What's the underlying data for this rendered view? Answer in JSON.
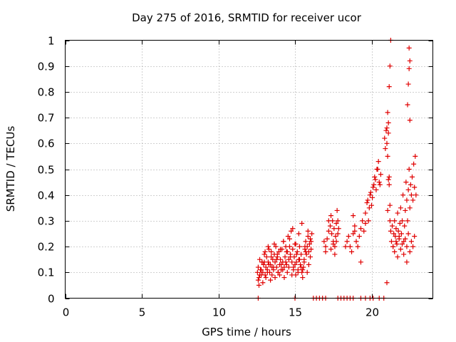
{
  "chart_data": {
    "type": "scatter",
    "title": "Day 275 of 2016, SRMTID for receiver ucor",
    "xlabel": "GPS time / hours",
    "ylabel": "SRMTID / TECUs",
    "xlim": [
      0,
      24
    ],
    "ylim": [
      0,
      1
    ],
    "x_ticks": [
      0,
      5,
      10,
      15,
      20
    ],
    "x_tick_labels": [
      "0",
      "5",
      "10",
      "15",
      "20"
    ],
    "y_ticks": [
      0,
      0.1,
      0.2,
      0.3,
      0.4,
      0.5,
      0.6,
      0.7,
      0.8,
      0.9,
      1
    ],
    "y_tick_labels": [
      "0",
      "0.1",
      "0.2",
      "0.3",
      "0.4",
      "0.5",
      "0.6",
      "0.7",
      "0.8",
      "0.9",
      "1"
    ],
    "grid": true,
    "marker": "plus",
    "color": "#e00000",
    "series": [
      {
        "x": [
          12.55,
          12.6,
          12.65,
          12.7,
          12.75,
          12.8,
          12.85,
          12.9,
          12.95,
          13.0,
          13.05,
          13.1,
          13.15,
          13.2,
          13.25,
          13.3,
          13.35,
          13.4,
          13.45,
          13.5,
          13.55,
          13.6,
          13.65,
          13.7,
          13.75,
          13.8,
          13.85,
          13.9,
          13.95,
          14.0,
          14.05,
          14.1,
          14.15,
          14.2,
          14.25,
          14.3,
          14.35,
          14.4,
          14.45,
          14.5,
          14.55,
          14.6,
          14.65,
          14.7,
          14.75,
          14.8,
          14.85,
          14.9,
          14.95,
          15.0,
          15.05,
          15.1,
          15.15,
          15.2,
          15.25,
          15.3,
          15.35,
          15.4,
          15.45,
          15.5,
          15.55,
          15.6,
          15.65,
          15.7,
          15.75,
          15.8,
          15.85,
          15.9,
          15.95,
          16.0,
          16.05,
          16.1,
          12.6,
          12.7,
          12.8,
          12.9,
          13.0,
          13.1,
          13.2,
          13.3,
          13.4,
          13.5,
          13.6,
          13.7,
          13.8,
          13.9,
          14.0,
          14.1,
          14.2,
          14.3,
          14.4,
          14.5,
          14.6,
          14.7,
          14.8,
          14.9,
          15.0,
          15.1,
          15.2,
          15.3,
          15.4,
          15.5,
          15.6,
          15.7,
          15.8,
          15.9,
          16.0,
          12.65,
          12.85,
          13.05,
          13.25,
          13.45,
          13.65,
          13.85,
          14.05,
          14.25,
          14.45,
          14.65,
          14.85,
          15.05,
          15.25,
          15.45,
          15.65,
          15.85,
          16.05,
          16.9,
          17.0,
          17.1,
          17.2,
          17.3,
          17.35,
          17.4,
          17.45,
          17.5,
          17.55,
          17.6,
          17.65,
          17.7,
          17.75,
          17.8,
          17.85,
          17.0,
          17.2,
          17.35,
          17.5,
          17.6,
          17.7,
          17.8,
          18.3,
          18.4,
          18.5,
          18.6,
          18.7,
          18.8,
          18.9,
          19.0,
          19.1,
          19.2,
          19.3,
          19.4,
          19.5,
          19.6,
          19.7,
          19.8,
          19.9,
          20.0,
          20.1,
          20.2,
          20.3,
          20.4,
          20.5,
          20.6,
          18.8,
          18.9,
          19.3,
          19.6,
          19.75,
          19.85,
          19.95,
          20.05,
          20.15,
          20.25,
          20.35,
          20.45,
          20.55,
          20.85,
          20.9,
          20.95,
          21.0,
          21.05,
          21.1,
          21.15,
          21.2,
          21.25,
          21.3,
          21.35,
          21.4,
          21.45,
          21.5,
          21.55,
          21.6,
          21.65,
          21.7,
          21.75,
          21.8,
          21.85,
          21.9,
          21.95,
          22.0,
          22.05,
          22.1,
          22.15,
          22.2,
          22.25,
          22.3,
          22.35,
          22.4,
          22.45,
          22.5,
          22.55,
          22.6,
          22.65,
          22.7,
          22.75,
          22.8,
          22.85,
          22.9,
          21.0,
          21.05,
          21.1,
          21.15,
          21.2,
          21.25,
          21.4,
          21.5,
          21.6,
          21.7,
          21.8,
          21.9,
          22.0,
          22.1,
          22.2,
          22.3,
          22.4,
          22.5,
          22.6,
          22.7,
          22.8,
          21.1,
          21.15,
          21.2,
          21.05,
          21.0,
          22.45,
          22.5,
          22.45,
          22.4,
          22.35,
          22.5,
          22.3,
          12.6,
          15.0,
          16.2,
          16.4,
          16.6,
          16.8,
          17.0,
          17.8,
          18.0,
          18.2,
          18.4,
          18.6,
          18.8,
          19.3,
          19.6,
          19.9,
          20.1,
          20.5,
          20.8
        ],
        "y": [
          0.1,
          0.12,
          0.08,
          0.15,
          0.11,
          0.09,
          0.14,
          0.1,
          0.13,
          0.17,
          0.09,
          0.12,
          0.16,
          0.11,
          0.14,
          0.19,
          0.1,
          0.13,
          0.18,
          0.12,
          0.15,
          0.11,
          0.17,
          0.14,
          0.2,
          0.12,
          0.16,
          0.1,
          0.18,
          0.13,
          0.15,
          0.11,
          0.19,
          0.14,
          0.22,
          0.12,
          0.16,
          0.2,
          0.13,
          0.18,
          0.24,
          0.15,
          0.2,
          0.17,
          0.26,
          0.14,
          0.19,
          0.12,
          0.16,
          0.21,
          0.09,
          0.14,
          0.18,
          0.11,
          0.15,
          0.2,
          0.13,
          0.17,
          0.1,
          0.08,
          0.12,
          0.15,
          0.19,
          0.22,
          0.17,
          0.2,
          0.24,
          0.18,
          0.21,
          0.23,
          0.19,
          0.25,
          0.07,
          0.09,
          0.11,
          0.06,
          0.14,
          0.08,
          0.1,
          0.13,
          0.07,
          0.09,
          0.12,
          0.08,
          0.15,
          0.1,
          0.09,
          0.13,
          0.11,
          0.08,
          0.14,
          0.1,
          0.12,
          0.16,
          0.09,
          0.11,
          0.13,
          0.17,
          0.1,
          0.15,
          0.12,
          0.11,
          0.14,
          0.18,
          0.1,
          0.13,
          0.16,
          0.05,
          0.14,
          0.18,
          0.2,
          0.16,
          0.21,
          0.17,
          0.19,
          0.22,
          0.18,
          0.23,
          0.27,
          0.21,
          0.25,
          0.29,
          0.2,
          0.26,
          0.22,
          0.22,
          0.2,
          0.23,
          0.26,
          0.28,
          0.32,
          0.25,
          0.3,
          0.22,
          0.27,
          0.2,
          0.24,
          0.29,
          0.34,
          0.3,
          0.27,
          0.18,
          0.3,
          0.19,
          0.21,
          0.17,
          0.22,
          0.25,
          0.2,
          0.22,
          0.24,
          0.2,
          0.18,
          0.25,
          0.28,
          0.22,
          0.2,
          0.24,
          0.27,
          0.3,
          0.26,
          0.33,
          0.37,
          0.3,
          0.4,
          0.36,
          0.43,
          0.47,
          0.42,
          0.5,
          0.45,
          0.48,
          0.32,
          0.26,
          0.14,
          0.29,
          0.38,
          0.35,
          0.41,
          0.39,
          0.44,
          0.46,
          0.5,
          0.53,
          0.44,
          0.62,
          0.58,
          0.65,
          0.6,
          0.55,
          0.64,
          0.47,
          0.3,
          0.26,
          0.22,
          0.28,
          0.2,
          0.25,
          0.3,
          0.24,
          0.27,
          0.21,
          0.33,
          0.26,
          0.23,
          0.29,
          0.35,
          0.25,
          0.3,
          0.4,
          0.22,
          0.28,
          0.34,
          0.45,
          0.38,
          0.3,
          0.42,
          0.5,
          0.35,
          0.44,
          0.4,
          0.47,
          0.38,
          0.52,
          0.43,
          0.55,
          0.4,
          0.06,
          0.72,
          0.68,
          0.82,
          0.9,
          1.0,
          0.2,
          0.18,
          0.22,
          0.16,
          0.24,
          0.19,
          0.21,
          0.17,
          0.23,
          0.2,
          0.25,
          0.18,
          0.22,
          0.2,
          0.24,
          0.46,
          0.44,
          0.36,
          0.34,
          0.66,
          0.97,
          0.92,
          0.89,
          0.83,
          0.75,
          0.69,
          0.14,
          0,
          0,
          0,
          0,
          0,
          0,
          0,
          0,
          0,
          0,
          0,
          0,
          0,
          0,
          0,
          0,
          0,
          0,
          0
        ]
      }
    ]
  }
}
